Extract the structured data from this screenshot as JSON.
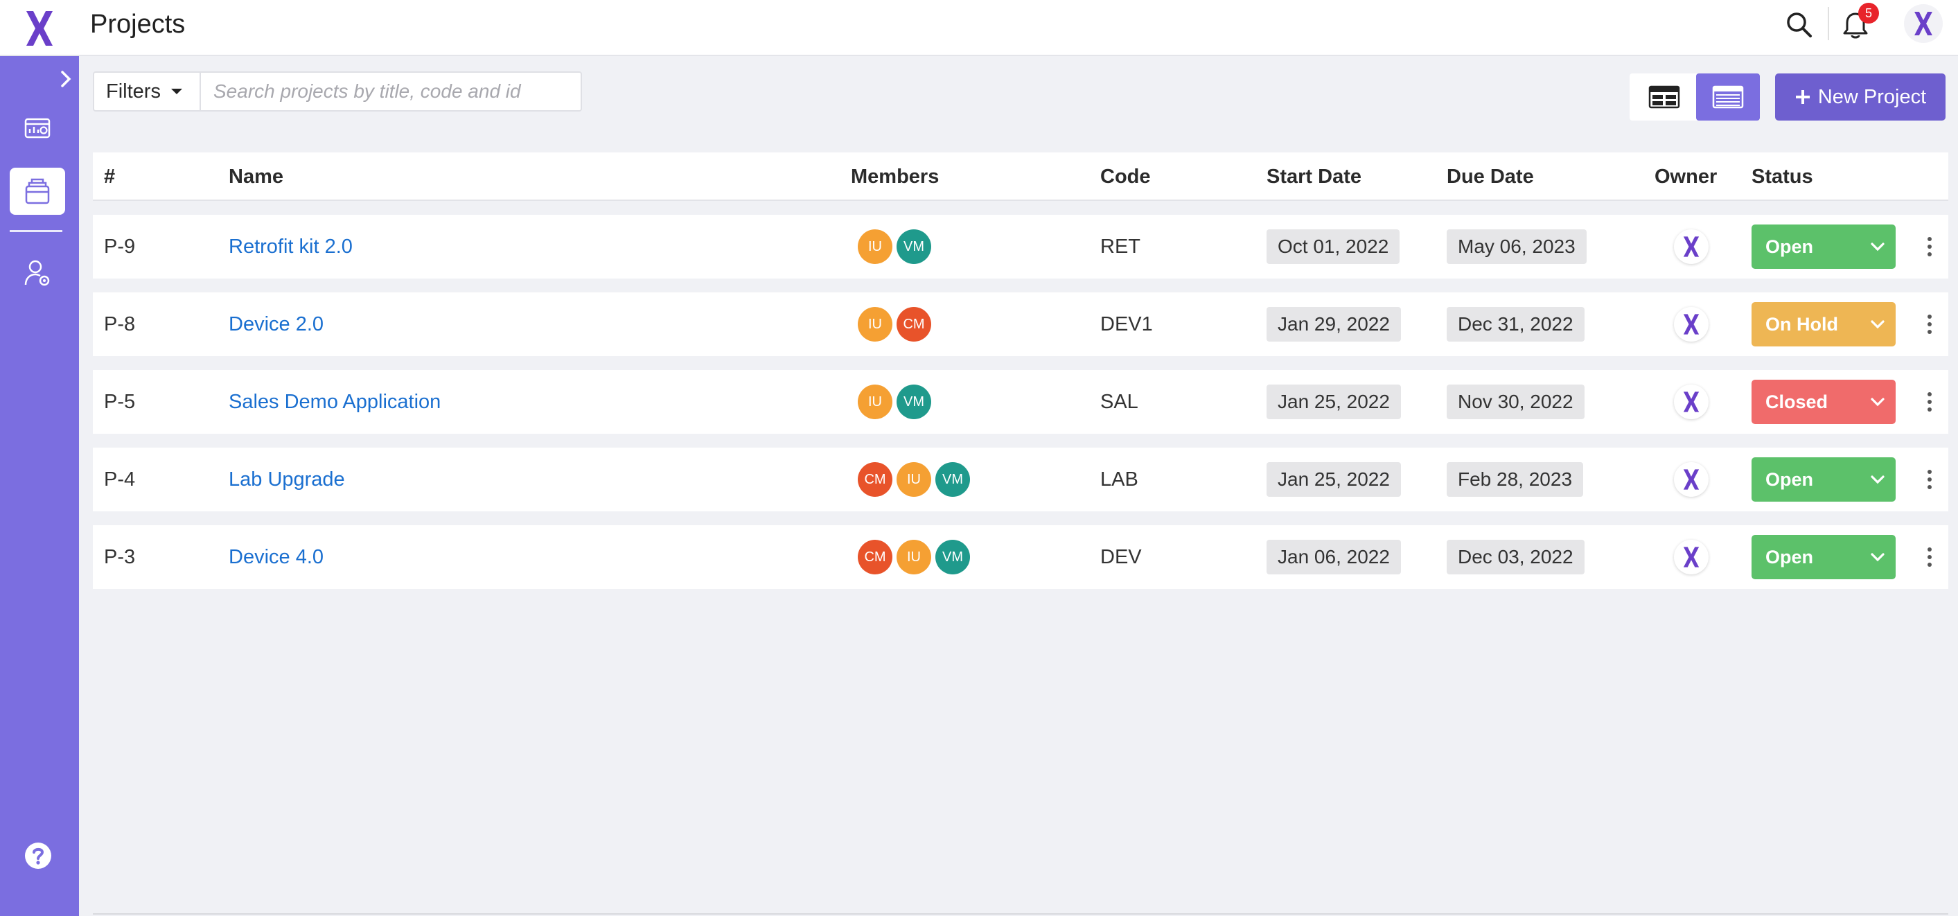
{
  "header": {
    "title": "Projects",
    "notification_count": "5"
  },
  "toolbar": {
    "filters_label": "Filters",
    "search_placeholder": "Search projects by title, code and id",
    "new_project_label": "New Project"
  },
  "table": {
    "columns": [
      "#",
      "Name",
      "Members",
      "Code",
      "Start Date",
      "Due Date",
      "Owner",
      "Status"
    ],
    "rows": [
      {
        "id": "P-9",
        "name": "Retrofit kit 2.0",
        "members": [
          "IU",
          "VM"
        ],
        "code": "RET",
        "start": "Oct 01, 2022",
        "due": "May 06, 2023",
        "status": "Open"
      },
      {
        "id": "P-8",
        "name": "Device 2.0",
        "members": [
          "IU",
          "CM"
        ],
        "code": "DEV1",
        "start": "Jan 29, 2022",
        "due": "Dec 31, 2022",
        "status": "On Hold"
      },
      {
        "id": "P-5",
        "name": "Sales Demo Application",
        "members": [
          "IU",
          "VM"
        ],
        "code": "SAL",
        "start": "Jan 25, 2022",
        "due": "Nov 30, 2022",
        "status": "Closed"
      },
      {
        "id": "P-4",
        "name": "Lab Upgrade",
        "members": [
          "CM",
          "IU",
          "VM"
        ],
        "code": "LAB",
        "start": "Jan 25, 2022",
        "due": "Feb 28, 2023",
        "status": "Open"
      },
      {
        "id": "P-3",
        "name": "Device 4.0",
        "members": [
          "CM",
          "IU",
          "VM"
        ],
        "code": "DEV",
        "start": "Jan 06, 2022",
        "due": "Dec 03, 2022",
        "status": "Open"
      }
    ]
  },
  "colors": {
    "brand": "#7b6ee0",
    "brand_dark": "#6e5fcf",
    "logo": "#6a3fc9",
    "link": "#1a6fd0",
    "status_open": "#5cc16a",
    "status_on_hold": "#eeb654",
    "status_closed": "#f06b6b",
    "avatar_IU": "#f5a033",
    "avatar_VM": "#1f9a8c",
    "avatar_CM": "#e8532a"
  },
  "icons": {
    "logo": "x-logo-icon",
    "search": "search-icon",
    "bell": "bell-icon",
    "dashboard": "dashboard-icon",
    "projects": "folders-icon",
    "users": "user-settings-icon",
    "help": "help-icon",
    "grid_view": "grid-view-icon",
    "list_view": "list-view-icon"
  }
}
